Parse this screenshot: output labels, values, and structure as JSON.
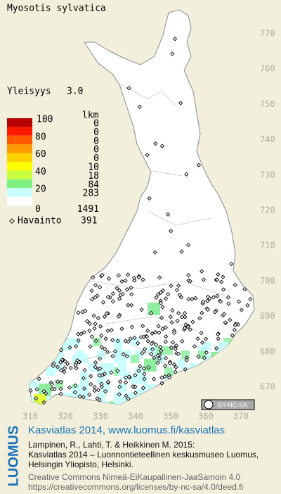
{
  "title": "Myosotis sylvatica",
  "frequency": {
    "label": "Yleisyys",
    "value": "3.0"
  },
  "legend": {
    "count_header": "lkm",
    "classes": [
      {
        "label": 100,
        "color": "#b40000",
        "count": 0
      },
      {
        "color": "#ff1a00",
        "count": 0
      },
      {
        "label": 80,
        "color": "#ff5a00",
        "count": 0
      },
      {
        "color": "#ff9a00",
        "count": 0
      },
      {
        "label": 60,
        "color": "#ffd000",
        "count": 0
      },
      {
        "color": "#ffff00",
        "count": 10
      },
      {
        "label": 40,
        "color": "#c8ff40",
        "count": 18
      },
      {
        "color": "#80f080",
        "count": 84
      },
      {
        "label": 20,
        "color": "#c8ffff",
        "count": 283
      },
      {
        "label": 0,
        "color": "#ffffff",
        "count": 1491
      }
    ]
  },
  "observations": {
    "label": "Havainto",
    "count": 391
  },
  "grid": {
    "northing": [
      770,
      760,
      750,
      740,
      730,
      720,
      710,
      700,
      690,
      680,
      670
    ],
    "easting": [
      310,
      320,
      330,
      340,
      350,
      360,
      370
    ]
  },
  "license_badge": "BY-NC-SA",
  "footer": {
    "logo": "LUOMUS",
    "link": "Kasviatlas 2014, www.luomus.fi/kasviatlas",
    "citation": [
      "Lampinen, R., Lahti, T. & Heikkinen M. 2015:",
      "Kasviatlas 2014 – Luonnontieteellinen keskusmuseo Luomus,",
      "Helsingin Yliopisto, Helsinki."
    ],
    "license": [
      "Creative Commons Nimeä-EiKaupallinen-JaaSamoin 4.0",
      "https://creativecommons.org/licenses/by-nc-sa/4.0/deed.fi"
    ]
  }
}
